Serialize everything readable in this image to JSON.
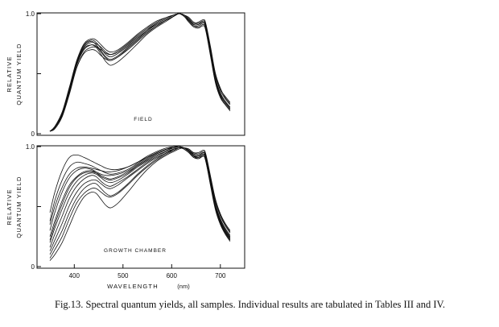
{
  "chart_data": [
    {
      "type": "line",
      "panel_label": "FIELD",
      "xlabel": "",
      "ylabel": [
        "RELATIVE",
        "QUANTUM YIELD"
      ],
      "xlim": [
        340,
        740
      ],
      "ylim": [
        0,
        1.0
      ],
      "x_ticks": [],
      "y_ticks": [
        {
          "value": 0,
          "label": "0"
        },
        {
          "value": 1.0,
          "label": "1.0"
        }
      ],
      "x": [
        350,
        360,
        375,
        390,
        405,
        420,
        435,
        445,
        455,
        465,
        475,
        490,
        510,
        530,
        550,
        570,
        590,
        605,
        615,
        625,
        635,
        645,
        655,
        665,
        670,
        680,
        690,
        700,
        710,
        720
      ],
      "series": [
        {
          "values": [
            0.02,
            0.05,
            0.15,
            0.35,
            0.58,
            0.72,
            0.76,
            0.75,
            0.72,
            0.68,
            0.66,
            0.68,
            0.74,
            0.81,
            0.87,
            0.92,
            0.96,
            0.99,
            1.0,
            0.99,
            0.95,
            0.91,
            0.91,
            0.93,
            0.9,
            0.68,
            0.46,
            0.34,
            0.27,
            0.22
          ]
        },
        {
          "values": [
            0.02,
            0.06,
            0.17,
            0.38,
            0.6,
            0.74,
            0.78,
            0.76,
            0.71,
            0.66,
            0.64,
            0.67,
            0.73,
            0.8,
            0.86,
            0.91,
            0.95,
            0.98,
            1.0,
            0.98,
            0.94,
            0.9,
            0.9,
            0.92,
            0.88,
            0.66,
            0.44,
            0.32,
            0.26,
            0.21
          ]
        },
        {
          "values": [
            0.02,
            0.04,
            0.14,
            0.33,
            0.55,
            0.68,
            0.72,
            0.72,
            0.7,
            0.67,
            0.66,
            0.69,
            0.75,
            0.82,
            0.88,
            0.93,
            0.97,
            0.99,
            1.0,
            0.99,
            0.96,
            0.92,
            0.92,
            0.94,
            0.91,
            0.7,
            0.48,
            0.36,
            0.29,
            0.24
          ]
        },
        {
          "values": [
            0.02,
            0.05,
            0.16,
            0.36,
            0.58,
            0.71,
            0.74,
            0.72,
            0.66,
            0.6,
            0.57,
            0.6,
            0.67,
            0.75,
            0.83,
            0.89,
            0.94,
            0.98,
            1.0,
            0.99,
            0.96,
            0.92,
            0.93,
            0.95,
            0.92,
            0.72,
            0.5,
            0.38,
            0.3,
            0.25
          ]
        },
        {
          "values": [
            0.02,
            0.05,
            0.15,
            0.34,
            0.55,
            0.67,
            0.7,
            0.69,
            0.65,
            0.62,
            0.61,
            0.64,
            0.71,
            0.78,
            0.85,
            0.9,
            0.95,
            0.98,
            1.0,
            0.98,
            0.94,
            0.9,
            0.89,
            0.91,
            0.87,
            0.65,
            0.43,
            0.31,
            0.25,
            0.2
          ]
        },
        {
          "values": [
            0.02,
            0.06,
            0.18,
            0.39,
            0.61,
            0.75,
            0.79,
            0.78,
            0.74,
            0.7,
            0.68,
            0.7,
            0.76,
            0.83,
            0.89,
            0.94,
            0.97,
            0.99,
            1.0,
            0.99,
            0.95,
            0.91,
            0.91,
            0.93,
            0.89,
            0.67,
            0.45,
            0.33,
            0.27,
            0.22
          ]
        },
        {
          "values": [
            0.02,
            0.05,
            0.15,
            0.35,
            0.57,
            0.7,
            0.74,
            0.73,
            0.68,
            0.63,
            0.61,
            0.64,
            0.7,
            0.77,
            0.84,
            0.9,
            0.95,
            0.98,
            1.0,
            0.99,
            0.97,
            0.93,
            0.92,
            0.94,
            0.91,
            0.71,
            0.49,
            0.37,
            0.31,
            0.26
          ]
        },
        {
          "values": [
            0.02,
            0.05,
            0.16,
            0.37,
            0.59,
            0.73,
            0.77,
            0.74,
            0.69,
            0.64,
            0.62,
            0.65,
            0.72,
            0.79,
            0.86,
            0.92,
            0.96,
            0.99,
            1.0,
            0.98,
            0.93,
            0.89,
            0.88,
            0.9,
            0.86,
            0.64,
            0.42,
            0.3,
            0.24,
            0.19
          ]
        }
      ]
    },
    {
      "type": "line",
      "panel_label": "GROWTH CHAMBER",
      "xlabel": "WAVELENGTH",
      "xlabel_unit": "(nm)",
      "ylabel": [
        "RELATIVE",
        "QUANTUM YIELD"
      ],
      "xlim": [
        340,
        740
      ],
      "ylim": [
        0,
        1.0
      ],
      "x_ticks": [
        {
          "value": 400,
          "label": "400"
        },
        {
          "value": 500,
          "label": "500"
        },
        {
          "value": 600,
          "label": "600"
        },
        {
          "value": 700,
          "label": "700"
        }
      ],
      "y_ticks": [
        {
          "value": 0,
          "label": "0"
        },
        {
          "value": 1.0,
          "label": "1.0"
        }
      ],
      "x": [
        350,
        360,
        375,
        390,
        405,
        420,
        435,
        445,
        455,
        465,
        475,
        490,
        510,
        530,
        550,
        570,
        590,
        605,
        615,
        625,
        635,
        645,
        655,
        665,
        670,
        680,
        690,
        700,
        710,
        720
      ],
      "series": [
        {
          "values": [
            0.45,
            0.62,
            0.8,
            0.91,
            0.93,
            0.91,
            0.88,
            0.86,
            0.84,
            0.82,
            0.81,
            0.81,
            0.83,
            0.87,
            0.92,
            0.96,
            0.99,
            1.0,
            1.0,
            0.99,
            0.97,
            0.93,
            0.91,
            0.93,
            0.9,
            0.7,
            0.5,
            0.38,
            0.3,
            0.24
          ]
        },
        {
          "values": [
            0.38,
            0.55,
            0.72,
            0.83,
            0.87,
            0.86,
            0.84,
            0.82,
            0.8,
            0.78,
            0.77,
            0.78,
            0.81,
            0.86,
            0.91,
            0.95,
            0.98,
            0.99,
            1.0,
            0.99,
            0.96,
            0.92,
            0.9,
            0.92,
            0.88,
            0.68,
            0.48,
            0.36,
            0.28,
            0.22
          ]
        },
        {
          "values": [
            0.3,
            0.45,
            0.62,
            0.74,
            0.8,
            0.82,
            0.81,
            0.79,
            0.77,
            0.76,
            0.76,
            0.77,
            0.8,
            0.85,
            0.9,
            0.95,
            0.98,
            1.0,
            1.0,
            0.99,
            0.97,
            0.94,
            0.93,
            0.95,
            0.92,
            0.72,
            0.52,
            0.4,
            0.32,
            0.26
          ]
        },
        {
          "values": [
            0.25,
            0.38,
            0.55,
            0.68,
            0.75,
            0.79,
            0.8,
            0.78,
            0.75,
            0.73,
            0.72,
            0.74,
            0.78,
            0.84,
            0.89,
            0.94,
            0.97,
            0.99,
            1.0,
            0.99,
            0.96,
            0.92,
            0.92,
            0.94,
            0.91,
            0.7,
            0.5,
            0.37,
            0.29,
            0.23
          ]
        },
        {
          "values": [
            0.2,
            0.32,
            0.48,
            0.62,
            0.71,
            0.76,
            0.78,
            0.77,
            0.74,
            0.71,
            0.7,
            0.72,
            0.77,
            0.83,
            0.88,
            0.93,
            0.96,
            0.98,
            0.99,
            0.99,
            0.97,
            0.94,
            0.93,
            0.95,
            0.92,
            0.73,
            0.54,
            0.42,
            0.34,
            0.28
          ]
        },
        {
          "values": [
            0.16,
            0.27,
            0.42,
            0.57,
            0.67,
            0.73,
            0.76,
            0.75,
            0.71,
            0.68,
            0.67,
            0.7,
            0.75,
            0.81,
            0.87,
            0.92,
            0.96,
            0.98,
            0.99,
            0.98,
            0.95,
            0.91,
            0.9,
            0.92,
            0.89,
            0.69,
            0.49,
            0.36,
            0.28,
            0.22
          ]
        },
        {
          "values": [
            0.13,
            0.22,
            0.36,
            0.51,
            0.62,
            0.69,
            0.72,
            0.72,
            0.69,
            0.66,
            0.65,
            0.68,
            0.74,
            0.8,
            0.86,
            0.91,
            0.95,
            0.98,
            0.99,
            0.99,
            0.98,
            0.95,
            0.94,
            0.96,
            0.93,
            0.74,
            0.55,
            0.43,
            0.35,
            0.29
          ]
        },
        {
          "values": [
            0.1,
            0.18,
            0.3,
            0.45,
            0.57,
            0.65,
            0.69,
            0.69,
            0.65,
            0.61,
            0.59,
            0.62,
            0.69,
            0.77,
            0.84,
            0.9,
            0.95,
            0.97,
            0.99,
            0.99,
            0.97,
            0.93,
            0.92,
            0.94,
            0.91,
            0.71,
            0.51,
            0.39,
            0.31,
            0.25
          ]
        },
        {
          "values": [
            0.07,
            0.14,
            0.25,
            0.4,
            0.53,
            0.61,
            0.65,
            0.65,
            0.62,
            0.59,
            0.58,
            0.61,
            0.68,
            0.76,
            0.83,
            0.89,
            0.94,
            0.97,
            0.99,
            0.99,
            0.96,
            0.92,
            0.91,
            0.93,
            0.9,
            0.7,
            0.49,
            0.37,
            0.29,
            0.23
          ]
        },
        {
          "values": [
            0.05,
            0.1,
            0.2,
            0.34,
            0.48,
            0.58,
            0.62,
            0.61,
            0.56,
            0.51,
            0.49,
            0.53,
            0.62,
            0.72,
            0.81,
            0.88,
            0.93,
            0.96,
            0.98,
            0.99,
            0.98,
            0.95,
            0.95,
            0.97,
            0.94,
            0.75,
            0.56,
            0.44,
            0.36,
            0.3
          ]
        },
        {
          "values": [
            0.35,
            0.5,
            0.66,
            0.77,
            0.82,
            0.83,
            0.82,
            0.81,
            0.8,
            0.79,
            0.79,
            0.8,
            0.83,
            0.87,
            0.91,
            0.95,
            0.98,
            0.99,
            1.0,
            0.99,
            0.97,
            0.93,
            0.92,
            0.94,
            0.9,
            0.71,
            0.51,
            0.38,
            0.3,
            0.24
          ]
        },
        {
          "values": [
            0.22,
            0.35,
            0.52,
            0.66,
            0.74,
            0.78,
            0.79,
            0.78,
            0.76,
            0.74,
            0.73,
            0.75,
            0.79,
            0.84,
            0.89,
            0.94,
            0.97,
            0.99,
            1.0,
            0.98,
            0.95,
            0.91,
            0.9,
            0.92,
            0.88,
            0.67,
            0.47,
            0.35,
            0.27,
            0.21
          ]
        }
      ]
    }
  ],
  "caption": {
    "text": "Fig.13. Spectral quantum yields, all samples. Individual results are tabulated in Tables III and IV."
  }
}
